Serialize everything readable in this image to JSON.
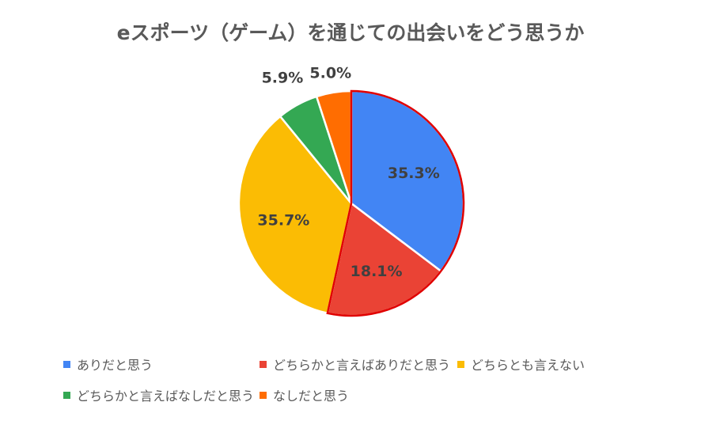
{
  "chart_data": {
    "type": "pie",
    "title": "eスポーツ（ゲーム）を通じての出会いをどう思うか",
    "categories": [
      "ありだと思う",
      "どちらかと言えばありだと思う",
      "どちらとも言えない",
      "どちらかと言えばなしだと思う",
      "なしだと思う"
    ],
    "values": [
      35.3,
      18.1,
      35.7,
      5.9,
      5.0
    ],
    "data_labels": [
      "35.3%",
      "18.1%",
      "35.7%",
      "5.9%",
      "5.0%"
    ],
    "colors": [
      "#4285F4",
      "#EA4335",
      "#FBBC04",
      "#34A853",
      "#FF6D01"
    ],
    "highlight_border_color": "#E00000",
    "legend_position": "bottom",
    "start_angle": "top, clockwise"
  }
}
